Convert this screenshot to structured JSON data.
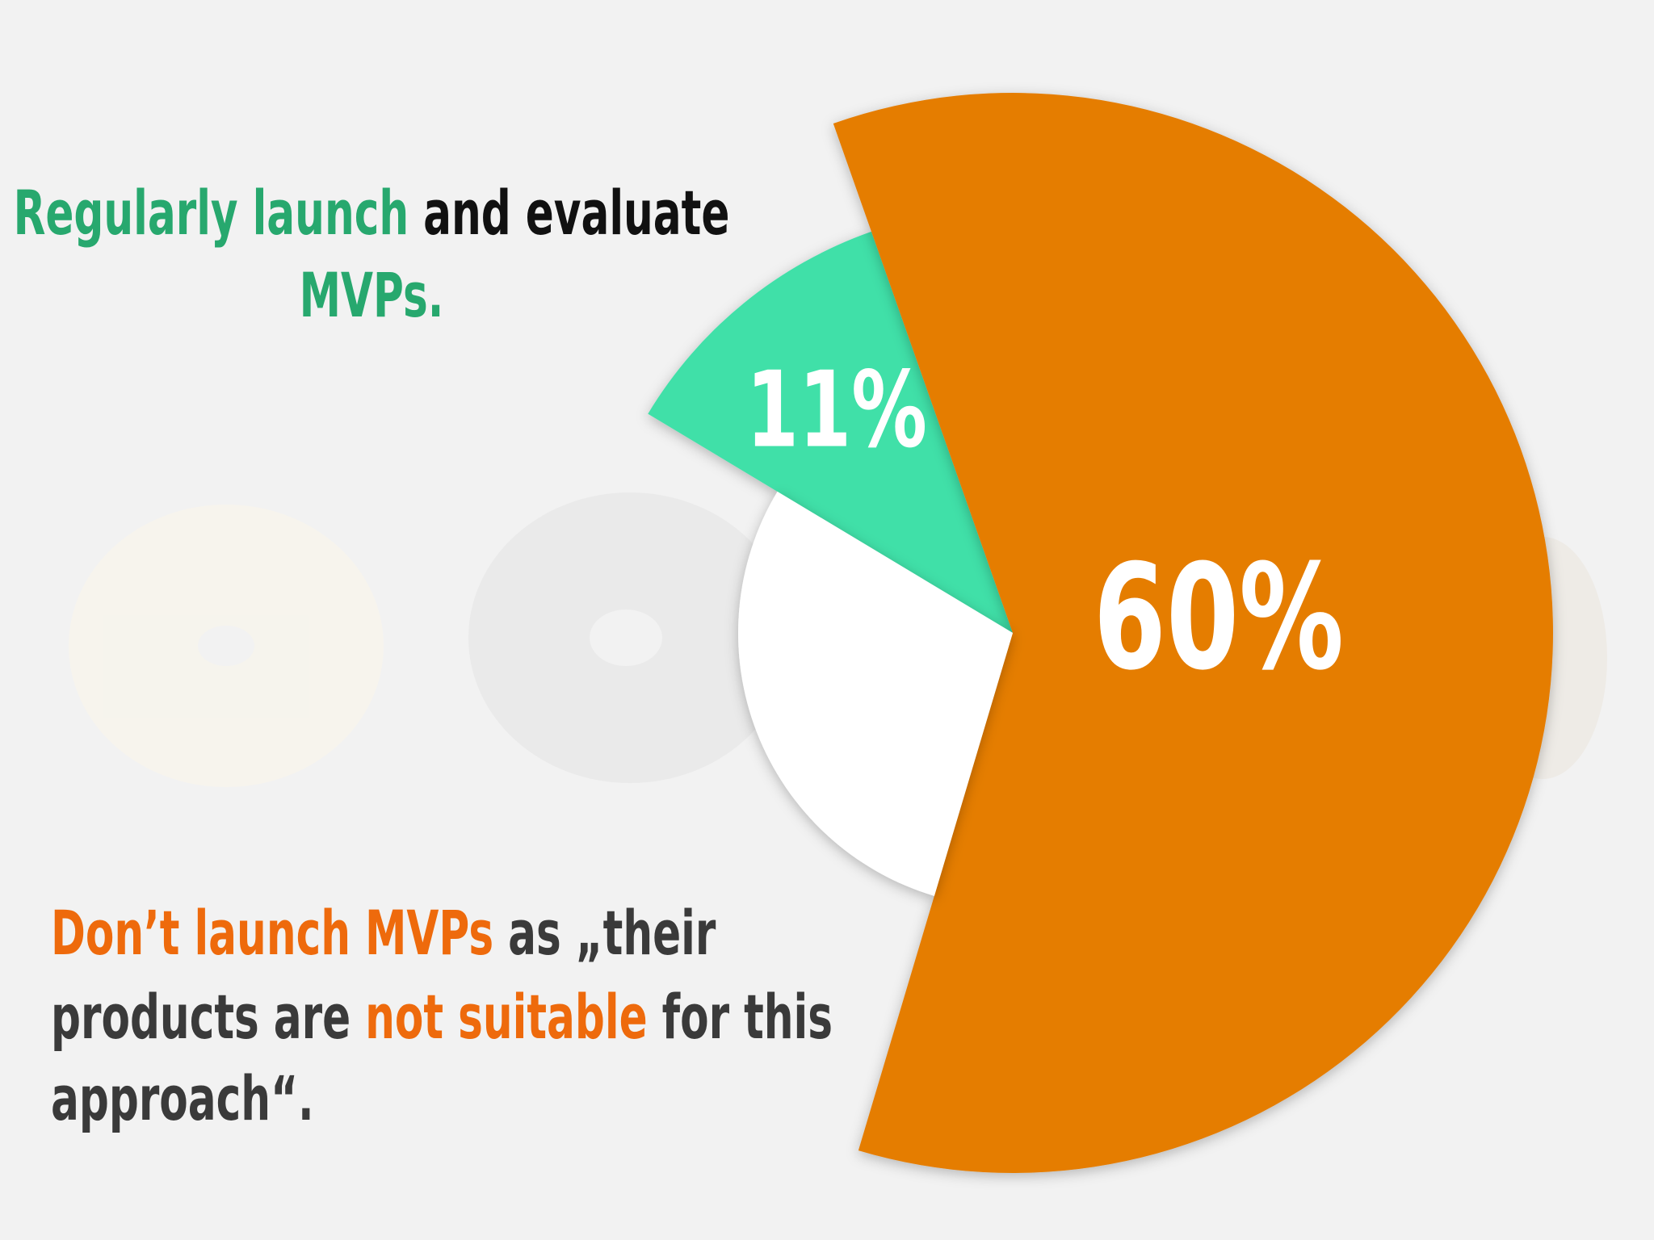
{
  "chart_data": {
    "type": "pie",
    "values": [
      11,
      60,
      29
    ],
    "value_labels": [
      "11%",
      "60%",
      null
    ],
    "colors": [
      "#3fe0a8",
      "#e57d00",
      "#ffffff"
    ],
    "annotations": [
      {
        "lines": [
          [
            {
              "text": "Regularly launch",
              "color": "#27a86e"
            },
            {
              "text": " and evaluate",
              "color": "#111111"
            }
          ],
          [
            {
              "text": "MVPs.",
              "color": "#27a86e"
            }
          ]
        ]
      },
      {
        "lines": [
          [
            {
              "text": "Don’t launch MVPs",
              "color": "#ee6a0c"
            },
            {
              "text": " as „their",
              "color": "#3a3a3a"
            }
          ],
          [
            {
              "text": "products are ",
              "color": "#3a3a3a"
            },
            {
              "text": "not suitable",
              "color": "#ee6a0c"
            },
            {
              "text": " for this",
              "color": "#3a3a3a"
            }
          ],
          [
            {
              "text": "approach“.",
              "color": "#3a3a3a"
            }
          ]
        ]
      }
    ]
  }
}
